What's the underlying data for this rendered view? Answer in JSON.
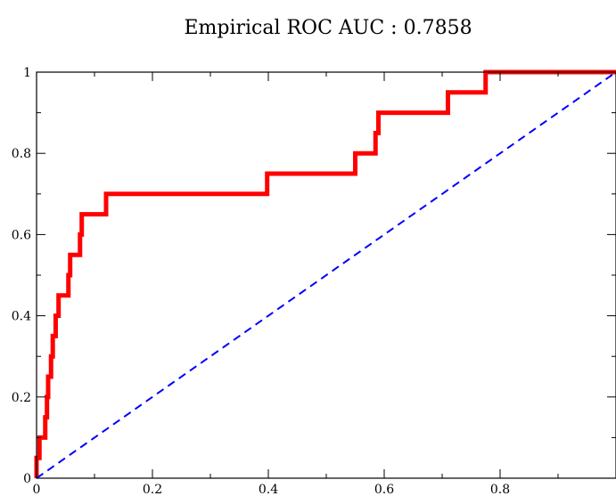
{
  "chart_data": {
    "type": "line",
    "title": "Empirical ROC AUC : 0.7858",
    "xlabel": "",
    "ylabel": "",
    "xlim": [
      0,
      1
    ],
    "ylim": [
      0,
      1
    ],
    "x_ticks": [
      0,
      0.2,
      0.4,
      0.6,
      0.8
    ],
    "x_tick_labels": [
      "0",
      "0.2",
      "0.4",
      "0.6",
      "0.8"
    ],
    "y_ticks": [
      0,
      0.2,
      0.4,
      0.6,
      0.8,
      1
    ],
    "y_tick_labels": [
      "0",
      "0.2",
      "0.4",
      "0.6",
      "0.8",
      "1"
    ],
    "grid": false,
    "series": [
      {
        "color": "#ff0000",
        "style": "solid",
        "points": [
          [
            0,
            0
          ],
          [
            0,
            0.05
          ],
          [
            0.005,
            0.05
          ],
          [
            0.005,
            0.1
          ],
          [
            0.015,
            0.1
          ],
          [
            0.015,
            0.15
          ],
          [
            0.018,
            0.15
          ],
          [
            0.018,
            0.2
          ],
          [
            0.02,
            0.2
          ],
          [
            0.02,
            0.25
          ],
          [
            0.025,
            0.25
          ],
          [
            0.025,
            0.3
          ],
          [
            0.028,
            0.3
          ],
          [
            0.028,
            0.35
          ],
          [
            0.033,
            0.35
          ],
          [
            0.033,
            0.4
          ],
          [
            0.038,
            0.4
          ],
          [
            0.038,
            0.45
          ],
          [
            0.055,
            0.45
          ],
          [
            0.055,
            0.5
          ],
          [
            0.058,
            0.5
          ],
          [
            0.058,
            0.55
          ],
          [
            0.075,
            0.55
          ],
          [
            0.075,
            0.6
          ],
          [
            0.078,
            0.6
          ],
          [
            0.078,
            0.65
          ],
          [
            0.12,
            0.65
          ],
          [
            0.12,
            0.7
          ],
          [
            0.398,
            0.7
          ],
          [
            0.398,
            0.75
          ],
          [
            0.55,
            0.75
          ],
          [
            0.55,
            0.8
          ],
          [
            0.585,
            0.8
          ],
          [
            0.585,
            0.85
          ],
          [
            0.59,
            0.85
          ],
          [
            0.59,
            0.9
          ],
          [
            0.71,
            0.9
          ],
          [
            0.71,
            0.95
          ],
          [
            0.775,
            0.95
          ],
          [
            0.775,
            1
          ],
          [
            1,
            1
          ]
        ]
      },
      {
        "color": "#0000ff",
        "style": "dashed",
        "points": [
          [
            0,
            0
          ],
          [
            1,
            1
          ]
        ]
      }
    ]
  }
}
